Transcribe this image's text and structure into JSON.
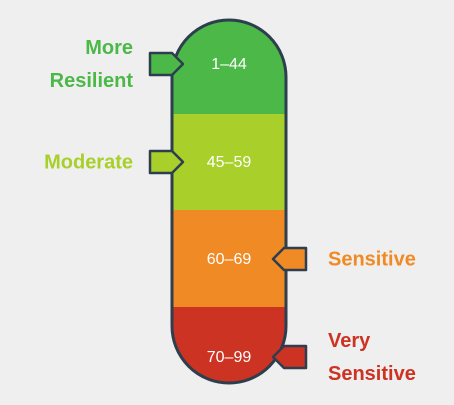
{
  "segments": [
    {
      "label": [
        "More",
        "Resilient"
      ],
      "range": "1–44",
      "color": "#4cb848",
      "side": "left"
    },
    {
      "label": [
        "Moderate"
      ],
      "range": "45–59",
      "color": "#a8cf2a",
      "side": "left"
    },
    {
      "label": [
        "Sensitive"
      ],
      "range": "60–69",
      "color": "#f08a24",
      "side": "right"
    },
    {
      "label": [
        "Very",
        "Sensitive"
      ],
      "range": "70–99",
      "color": "#cc3322",
      "side": "right"
    }
  ]
}
